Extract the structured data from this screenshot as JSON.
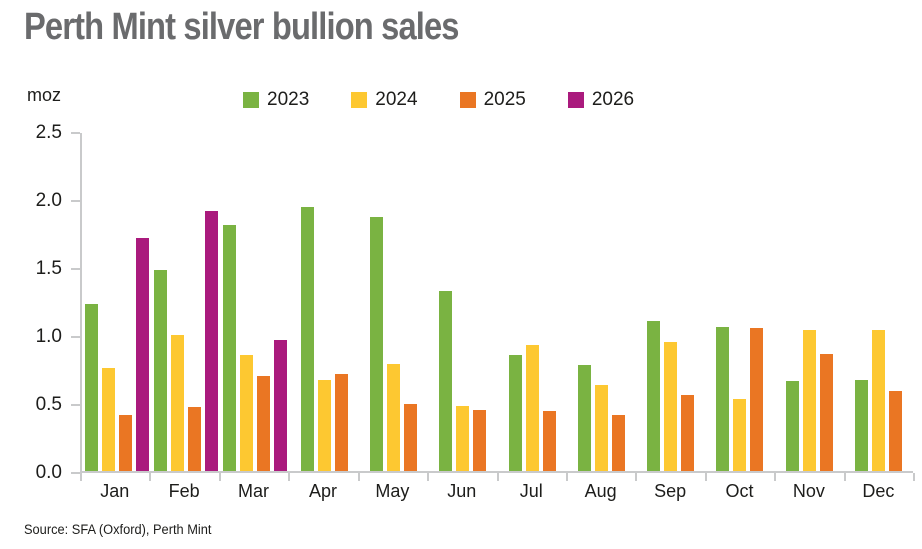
{
  "title": "Perth Mint silver bullion sales",
  "unit_label": "moz",
  "source": "Source: SFA (Oxford), Perth Mint",
  "colors": {
    "series_2023": "#7ab342",
    "series_2024": "#fdc831",
    "series_2025": "#ea7623",
    "series_2026": "#aa1a7d",
    "title_text": "#6a6b6d",
    "axis_line": "#c9cacb",
    "body_text": "#1d1d1b"
  },
  "chart_data": {
    "type": "bar",
    "title": "Perth Mint silver bullion sales",
    "xlabel": "",
    "ylabel": "moz",
    "ylim": [
      0,
      2.5
    ],
    "yticks": [
      0.0,
      0.5,
      1.0,
      1.5,
      2.0,
      2.5
    ],
    "grid": false,
    "legend_position": "top",
    "categories": [
      "Jan",
      "Feb",
      "Mar",
      "Apr",
      "May",
      "Jun",
      "Jul",
      "Aug",
      "Sep",
      "Oct",
      "Nov",
      "Dec"
    ],
    "series": [
      {
        "name": "2023",
        "color": "#7ab342",
        "values": [
          1.23,
          1.48,
          1.81,
          1.94,
          1.87,
          1.32,
          0.85,
          0.78,
          1.1,
          1.06,
          0.66,
          0.67
        ]
      },
      {
        "name": "2024",
        "color": "#fdc831",
        "values": [
          0.76,
          1.0,
          0.85,
          0.67,
          0.79,
          0.48,
          0.93,
          0.63,
          0.95,
          0.53,
          1.04,
          1.04
        ]
      },
      {
        "name": "2025",
        "color": "#ea7623",
        "values": [
          0.41,
          0.47,
          0.7,
          0.71,
          0.49,
          0.45,
          0.44,
          0.41,
          0.56,
          1.05,
          0.86,
          0.59
        ]
      },
      {
        "name": "2026",
        "color": "#aa1a7d",
        "values": [
          1.71,
          1.91,
          0.96,
          null,
          null,
          null,
          null,
          null,
          null,
          null,
          null,
          null
        ]
      }
    ]
  }
}
